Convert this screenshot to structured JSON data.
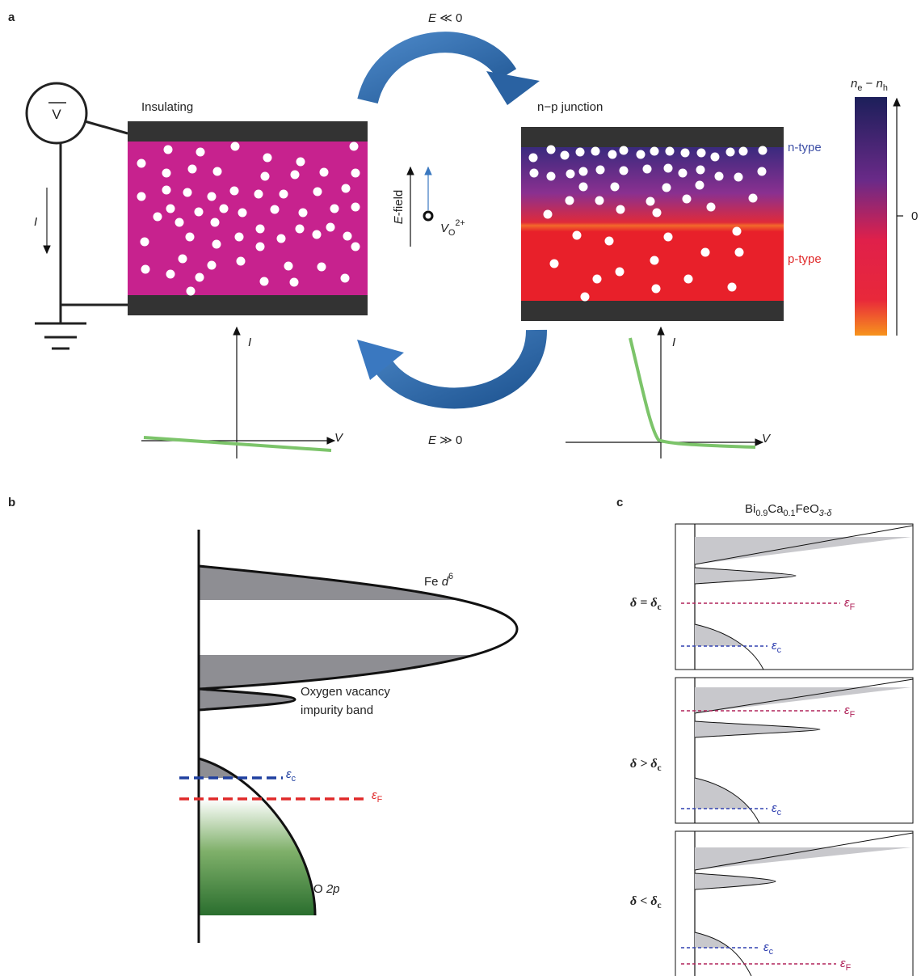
{
  "panel_a": {
    "label": "a",
    "top_arrow": {
      "symbol": "E",
      "relation": " ≪ 0"
    },
    "bottom_arrow": {
      "symbol": "E",
      "relation": " ≫ 0"
    },
    "voltmeter": "V",
    "current": "I",
    "left_device": "Insulating",
    "right_device": "n−p junction",
    "field_label": {
      "symbol": "E",
      "rest": "-field"
    },
    "vacancy": {
      "base": "V",
      "sub": "O",
      "sup": "2+"
    },
    "n_type": "n-type",
    "p_type": "p-type",
    "colorbar": {
      "label": {
        "n1": "n",
        "sub1": "e",
        "minus": " − ",
        "n2": "n",
        "sub2": "h"
      },
      "zero": "0"
    },
    "iv_plots": [
      {
        "y_label": "I",
        "x_label": "V"
      },
      {
        "y_label": "I",
        "x_label": "V"
      }
    ]
  },
  "panel_b": {
    "label": "b",
    "fe": {
      "text": "Fe ",
      "d": "d",
      "sup": "6"
    },
    "vacancy_band": [
      "Oxygen vacancy",
      "impurity band"
    ],
    "ec": {
      "symbol": "ε",
      "sub": "c"
    },
    "ef": {
      "symbol": "ε",
      "sub": "F"
    },
    "o2p": {
      "text": "O ",
      "italic": "2p"
    }
  },
  "panel_c": {
    "label": "c",
    "title": {
      "a": "Bi",
      "a_sub": "0.9",
      "b": "Ca",
      "b_sub": "0.1",
      "c": "FeO",
      "c_sub": "3-δ"
    },
    "rows": [
      {
        "label": {
          "text": "δ = δ",
          "sub": "c"
        },
        "ef": {
          "symbol": "ε",
          "sub": "F"
        },
        "ec": {
          "symbol": "ε",
          "sub": "c"
        }
      },
      {
        "label": {
          "text": "δ > δ",
          "sub": "c"
        },
        "ef": {
          "symbol": "ε",
          "sub": "F"
        },
        "ec": {
          "symbol": "ε",
          "sub": "c"
        }
      },
      {
        "label": {
          "text": "δ < δ",
          "sub": "c"
        },
        "ef": {
          "symbol": "ε",
          "sub": "F"
        },
        "ec": {
          "symbol": "ε",
          "sub": "c"
        }
      }
    ]
  }
}
